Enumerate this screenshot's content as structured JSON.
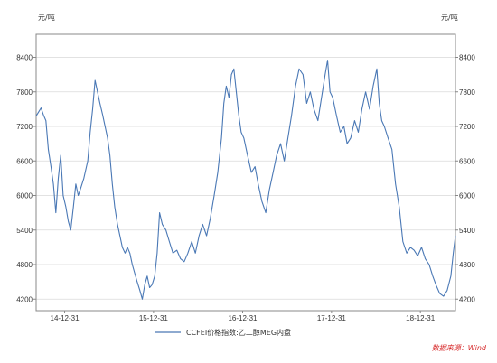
{
  "chart_data": {
    "type": "line",
    "y_unit_left": "元/吨",
    "y_unit_right": "元/吨",
    "ylim": [
      4000,
      8800
    ],
    "yticks": [
      4200,
      4800,
      5400,
      6000,
      6600,
      7200,
      7800,
      8400
    ],
    "xlim": [
      "2014-09-05",
      "2019-05-24"
    ],
    "xticks": [
      {
        "label": "14-12-31",
        "date": "2014-12-31"
      },
      {
        "label": "15-12-31",
        "date": "2015-12-31"
      },
      {
        "label": "16-12-31",
        "date": "2016-12-31"
      },
      {
        "label": "17-12-31",
        "date": "2017-12-31"
      },
      {
        "label": "18-12-31",
        "date": "2018-12-31"
      }
    ],
    "grid": "horizontal",
    "legend": "bottom-center",
    "series": [
      {
        "name": "CCFEI价格指数:乙二醇MEG内盘",
        "color": "#4a78b5",
        "points": [
          [
            "2014-09-05",
            7380
          ],
          [
            "2014-09-15",
            7450
          ],
          [
            "2014-09-25",
            7520
          ],
          [
            "2014-10-05",
            7400
          ],
          [
            "2014-10-15",
            7300
          ],
          [
            "2014-10-25",
            6800
          ],
          [
            "2014-11-05",
            6500
          ],
          [
            "2014-11-15",
            6200
          ],
          [
            "2014-11-25",
            5700
          ],
          [
            "2014-12-05",
            6300
          ],
          [
            "2014-12-15",
            6700
          ],
          [
            "2014-12-25",
            6000
          ],
          [
            "2015-01-05",
            5800
          ],
          [
            "2015-01-15",
            5550
          ],
          [
            "2015-01-25",
            5400
          ],
          [
            "2015-02-05",
            5800
          ],
          [
            "2015-02-15",
            6200
          ],
          [
            "2015-02-25",
            6000
          ],
          [
            "2015-03-05",
            6100
          ],
          [
            "2015-03-20",
            6300
          ],
          [
            "2015-04-05",
            6600
          ],
          [
            "2015-04-15",
            7100
          ],
          [
            "2015-04-25",
            7500
          ],
          [
            "2015-05-05",
            8000
          ],
          [
            "2015-05-15",
            7800
          ],
          [
            "2015-05-25",
            7600
          ],
          [
            "2015-06-05",
            7400
          ],
          [
            "2015-06-15",
            7200
          ],
          [
            "2015-06-25",
            7000
          ],
          [
            "2015-07-05",
            6700
          ],
          [
            "2015-07-15",
            6200
          ],
          [
            "2015-07-25",
            5800
          ],
          [
            "2015-08-05",
            5500
          ],
          [
            "2015-08-15",
            5300
          ],
          [
            "2015-08-25",
            5100
          ],
          [
            "2015-09-05",
            5000
          ],
          [
            "2015-09-15",
            5100
          ],
          [
            "2015-09-25",
            5000
          ],
          [
            "2015-10-05",
            4800
          ],
          [
            "2015-10-15",
            4650
          ],
          [
            "2015-10-25",
            4500
          ],
          [
            "2015-11-05",
            4350
          ],
          [
            "2015-11-15",
            4200
          ],
          [
            "2015-11-25",
            4450
          ],
          [
            "2015-12-05",
            4600
          ],
          [
            "2015-12-15",
            4400
          ],
          [
            "2015-12-25",
            4450
          ],
          [
            "2016-01-05",
            4600
          ],
          [
            "2016-01-15",
            5000
          ],
          [
            "2016-01-25",
            5700
          ],
          [
            "2016-02-05",
            5500
          ],
          [
            "2016-02-20",
            5400
          ],
          [
            "2016-03-05",
            5200
          ],
          [
            "2016-03-20",
            5000
          ],
          [
            "2016-04-05",
            5050
          ],
          [
            "2016-04-20",
            4900
          ],
          [
            "2016-05-05",
            4850
          ],
          [
            "2016-05-20",
            5000
          ],
          [
            "2016-06-05",
            5200
          ],
          [
            "2016-06-20",
            5000
          ],
          [
            "2016-07-05",
            5300
          ],
          [
            "2016-07-20",
            5500
          ],
          [
            "2016-08-05",
            5300
          ],
          [
            "2016-08-20",
            5600
          ],
          [
            "2016-09-05",
            6000
          ],
          [
            "2016-09-20",
            6400
          ],
          [
            "2016-10-05",
            7000
          ],
          [
            "2016-10-15",
            7600
          ],
          [
            "2016-10-25",
            7900
          ],
          [
            "2016-11-05",
            7700
          ],
          [
            "2016-11-15",
            8100
          ],
          [
            "2016-11-25",
            8200
          ],
          [
            "2016-12-05",
            7800
          ],
          [
            "2016-12-15",
            7400
          ],
          [
            "2016-12-25",
            7100
          ],
          [
            "2017-01-05",
            7000
          ],
          [
            "2017-01-20",
            6700
          ],
          [
            "2017-02-05",
            6400
          ],
          [
            "2017-02-20",
            6500
          ],
          [
            "2017-03-05",
            6200
          ],
          [
            "2017-03-20",
            5900
          ],
          [
            "2017-04-05",
            5700
          ],
          [
            "2017-04-20",
            6100
          ],
          [
            "2017-05-05",
            6400
          ],
          [
            "2017-05-20",
            6700
          ],
          [
            "2017-06-05",
            6900
          ],
          [
            "2017-06-20",
            6600
          ],
          [
            "2017-07-05",
            7000
          ],
          [
            "2017-07-20",
            7400
          ],
          [
            "2017-08-05",
            7900
          ],
          [
            "2017-08-20",
            8200
          ],
          [
            "2017-09-05",
            8100
          ],
          [
            "2017-09-20",
            7600
          ],
          [
            "2017-10-05",
            7800
          ],
          [
            "2017-10-20",
            7500
          ],
          [
            "2017-11-05",
            7300
          ],
          [
            "2017-11-20",
            7700
          ],
          [
            "2017-12-05",
            8100
          ],
          [
            "2017-12-15",
            8350
          ],
          [
            "2017-12-25",
            7800
          ],
          [
            "2018-01-05",
            7700
          ],
          [
            "2018-01-20",
            7400
          ],
          [
            "2018-02-05",
            7100
          ],
          [
            "2018-02-20",
            7200
          ],
          [
            "2018-03-05",
            6900
          ],
          [
            "2018-03-20",
            7000
          ],
          [
            "2018-04-05",
            7300
          ],
          [
            "2018-04-20",
            7100
          ],
          [
            "2018-05-05",
            7500
          ],
          [
            "2018-05-20",
            7800
          ],
          [
            "2018-06-05",
            7500
          ],
          [
            "2018-06-20",
            7900
          ],
          [
            "2018-07-05",
            8200
          ],
          [
            "2018-07-15",
            7600
          ],
          [
            "2018-07-25",
            7300
          ],
          [
            "2018-08-05",
            7200
          ],
          [
            "2018-08-20",
            7000
          ],
          [
            "2018-09-05",
            6800
          ],
          [
            "2018-09-20",
            6200
          ],
          [
            "2018-10-05",
            5800
          ],
          [
            "2018-10-20",
            5200
          ],
          [
            "2018-11-05",
            5000
          ],
          [
            "2018-11-20",
            5100
          ],
          [
            "2018-12-05",
            5050
          ],
          [
            "2018-12-20",
            4950
          ],
          [
            "2019-01-05",
            5100
          ],
          [
            "2019-01-20",
            4900
          ],
          [
            "2019-02-05",
            4800
          ],
          [
            "2019-02-20",
            4600
          ],
          [
            "2019-03-05",
            4450
          ],
          [
            "2019-03-20",
            4300
          ],
          [
            "2019-04-05",
            4250
          ],
          [
            "2019-04-20",
            4350
          ],
          [
            "2019-05-05",
            4600
          ],
          [
            "2019-05-15",
            5000
          ],
          [
            "2019-05-24",
            5300
          ]
        ]
      }
    ],
    "source": "数据来源：Wind"
  }
}
